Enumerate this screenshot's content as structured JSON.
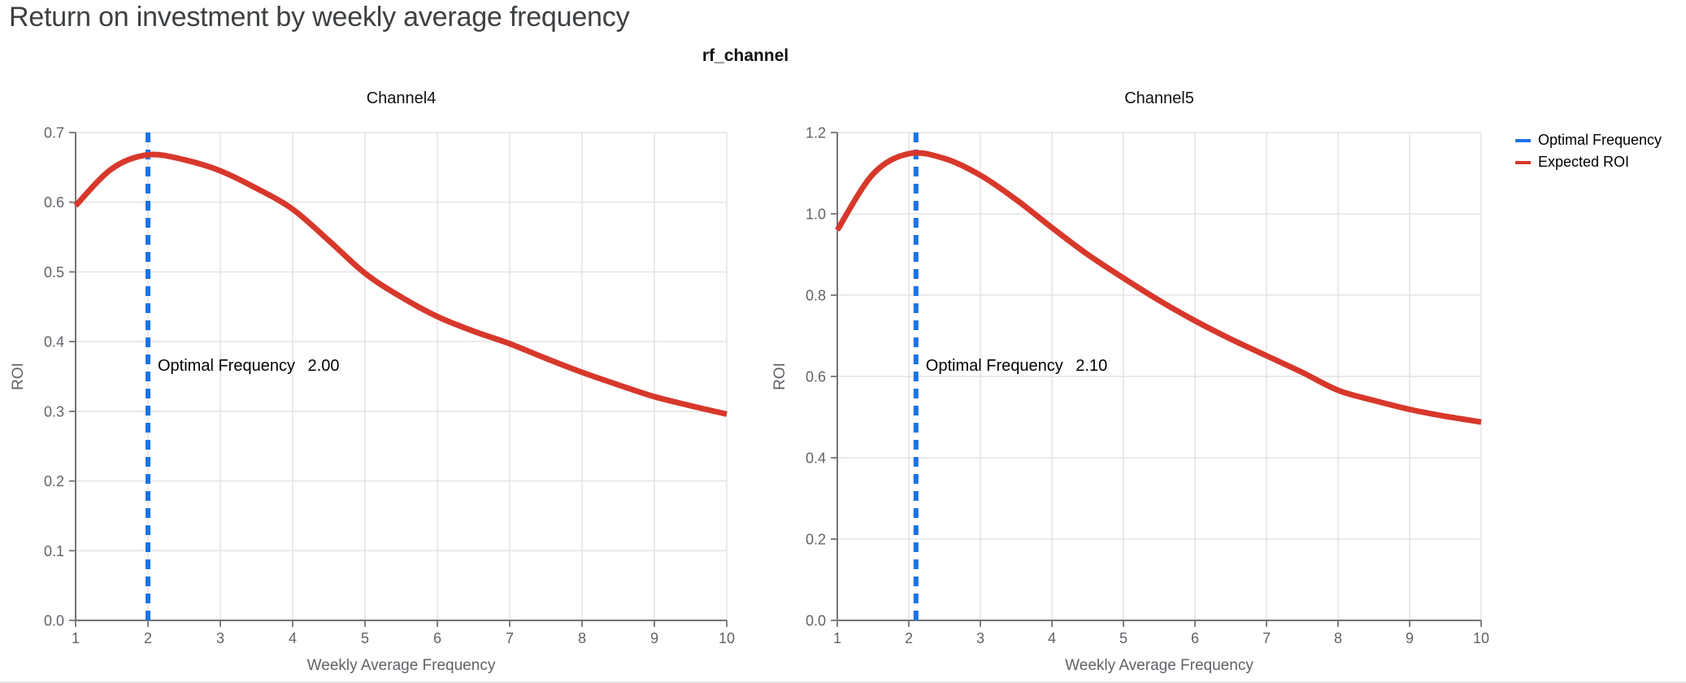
{
  "page_title": "Return on investment by weekly average frequency",
  "figure_title": "rf_channel",
  "legend": {
    "position": "outside-top-right",
    "items": [
      {
        "label": "Optimal Frequency",
        "color": "#1a73e8",
        "style": "dashed-line"
      },
      {
        "label": "Expected ROI",
        "color": "#d7382b",
        "style": "solid-line"
      }
    ]
  },
  "colors": {
    "expected_roi": "#d7382b",
    "optimal_frequency": "#1a73e8",
    "grid": "#e4e4e4",
    "axis": "#757575",
    "tick_label": "#5f6368",
    "axis_label": "#5f6368",
    "subplot_title": "#111111",
    "annotation": "#000000",
    "page_title": "#3c4043"
  },
  "chart_data": [
    {
      "type": "line",
      "title": "Channel4",
      "xlabel": "Weekly Average Frequency",
      "ylabel": "ROI",
      "xlim": [
        1,
        10
      ],
      "ylim": [
        0.0,
        0.7
      ],
      "xticks": [
        1,
        2,
        3,
        4,
        5,
        6,
        7,
        8,
        9,
        10
      ],
      "yticks": [
        0.0,
        0.1,
        0.2,
        0.3,
        0.4,
        0.5,
        0.6,
        0.7
      ],
      "ytick_decimals": 1,
      "grid": true,
      "optimal_frequency": 2.0,
      "annotation": {
        "label": "Optimal Frequency",
        "value": "2.00"
      },
      "series": [
        {
          "name": "Expected ROI",
          "x": [
            1,
            1.5,
            2,
            2.5,
            3,
            3.5,
            4,
            4.5,
            5,
            5.5,
            6,
            6.5,
            7,
            7.5,
            8,
            8.5,
            9,
            9.5,
            10
          ],
          "y": [
            0.595,
            0.648,
            0.668,
            0.661,
            0.645,
            0.62,
            0.59,
            0.545,
            0.498,
            0.464,
            0.436,
            0.415,
            0.397,
            0.376,
            0.356,
            0.338,
            0.321,
            0.308,
            0.296
          ]
        }
      ]
    },
    {
      "type": "line",
      "title": "Channel5",
      "xlabel": "Weekly Average Frequency",
      "ylabel": "ROI",
      "xlim": [
        1,
        10
      ],
      "ylim": [
        0.0,
        1.2
      ],
      "xticks": [
        1,
        2,
        3,
        4,
        5,
        6,
        7,
        8,
        9,
        10
      ],
      "yticks": [
        0.0,
        0.2,
        0.4,
        0.6,
        0.8,
        1.0,
        1.2
      ],
      "ytick_decimals": 1,
      "grid": true,
      "optimal_frequency": 2.1,
      "annotation": {
        "label": "Optimal Frequency",
        "value": "2.10"
      },
      "series": [
        {
          "name": "Expected ROI",
          "x": [
            1,
            1.5,
            2,
            2.5,
            3,
            3.5,
            4,
            4.5,
            5,
            5.5,
            6,
            6.5,
            7,
            7.5,
            8,
            8.5,
            9,
            9.5,
            10
          ],
          "y": [
            0.96,
            1.098,
            1.148,
            1.136,
            1.095,
            1.035,
            0.966,
            0.9,
            0.842,
            0.787,
            0.737,
            0.692,
            0.651,
            0.61,
            0.566,
            0.541,
            0.519,
            0.502,
            0.488
          ]
        }
      ]
    }
  ]
}
